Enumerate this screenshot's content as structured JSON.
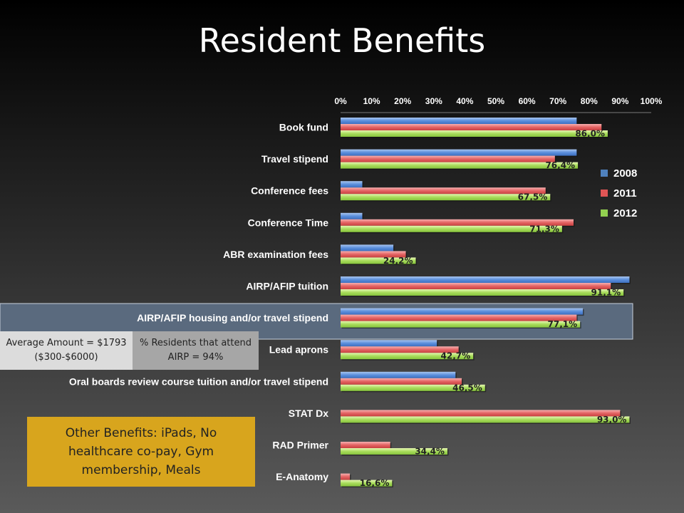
{
  "title": "Resident Benefits",
  "notes": {
    "average_amount": "Average Amount = $1793 ($300-$6000)",
    "airp_attendance": "% Residents that attend AIRP = 94%",
    "other_benefits": "Other Benefits: iPads, No healthcare co-pay, Gym membership, Meals"
  },
  "chart_data": {
    "type": "bar",
    "orientation": "horizontal",
    "title": "Resident Benefits",
    "xlabel": "",
    "ylabel": "",
    "xlim": [
      0,
      100
    ],
    "x_ticks": [
      "0%",
      "10%",
      "20%",
      "30%",
      "40%",
      "50%",
      "60%",
      "70%",
      "80%",
      "90%",
      "100%"
    ],
    "x_axis_position": "top",
    "legend_position": "right",
    "categories": [
      "Book fund",
      "Travel stipend",
      "Conference  fees",
      "Conference Time",
      "ABR examination fees",
      "AIRP/AFIP tuition",
      "AIRP/AFIP housing and/or travel stipend",
      "Lead aprons",
      "Oral boards review course tuition and/or travel stipend",
      "STAT Dx",
      "RAD Primer",
      "E-Anatomy"
    ],
    "highlighted_category": "AIRP/AFIP housing and/or travel stipend",
    "series": [
      {
        "name": "2008",
        "color": "#4f81bd",
        "values": [
          76,
          76,
          7,
          7,
          17,
          93,
          78,
          31,
          37,
          null,
          null,
          null
        ]
      },
      {
        "name": "2011",
        "color": "#e05555",
        "values": [
          84,
          69,
          66,
          75,
          21,
          87,
          76,
          38,
          39,
          90,
          16,
          3
        ]
      },
      {
        "name": "2012",
        "color": "#92d050",
        "values": [
          86.0,
          76.4,
          67.5,
          71.3,
          24.2,
          91.1,
          77.1,
          42.7,
          46.5,
          93.0,
          34.4,
          16.6
        ]
      }
    ],
    "data_labels": [
      "86,0%",
      "76,4%",
      "67,5%",
      "71,3%",
      "24,2%",
      "91,1%",
      "77,1%",
      "42,7%",
      "46,5%",
      "93,0%",
      "34,4%",
      "16,6%"
    ]
  }
}
